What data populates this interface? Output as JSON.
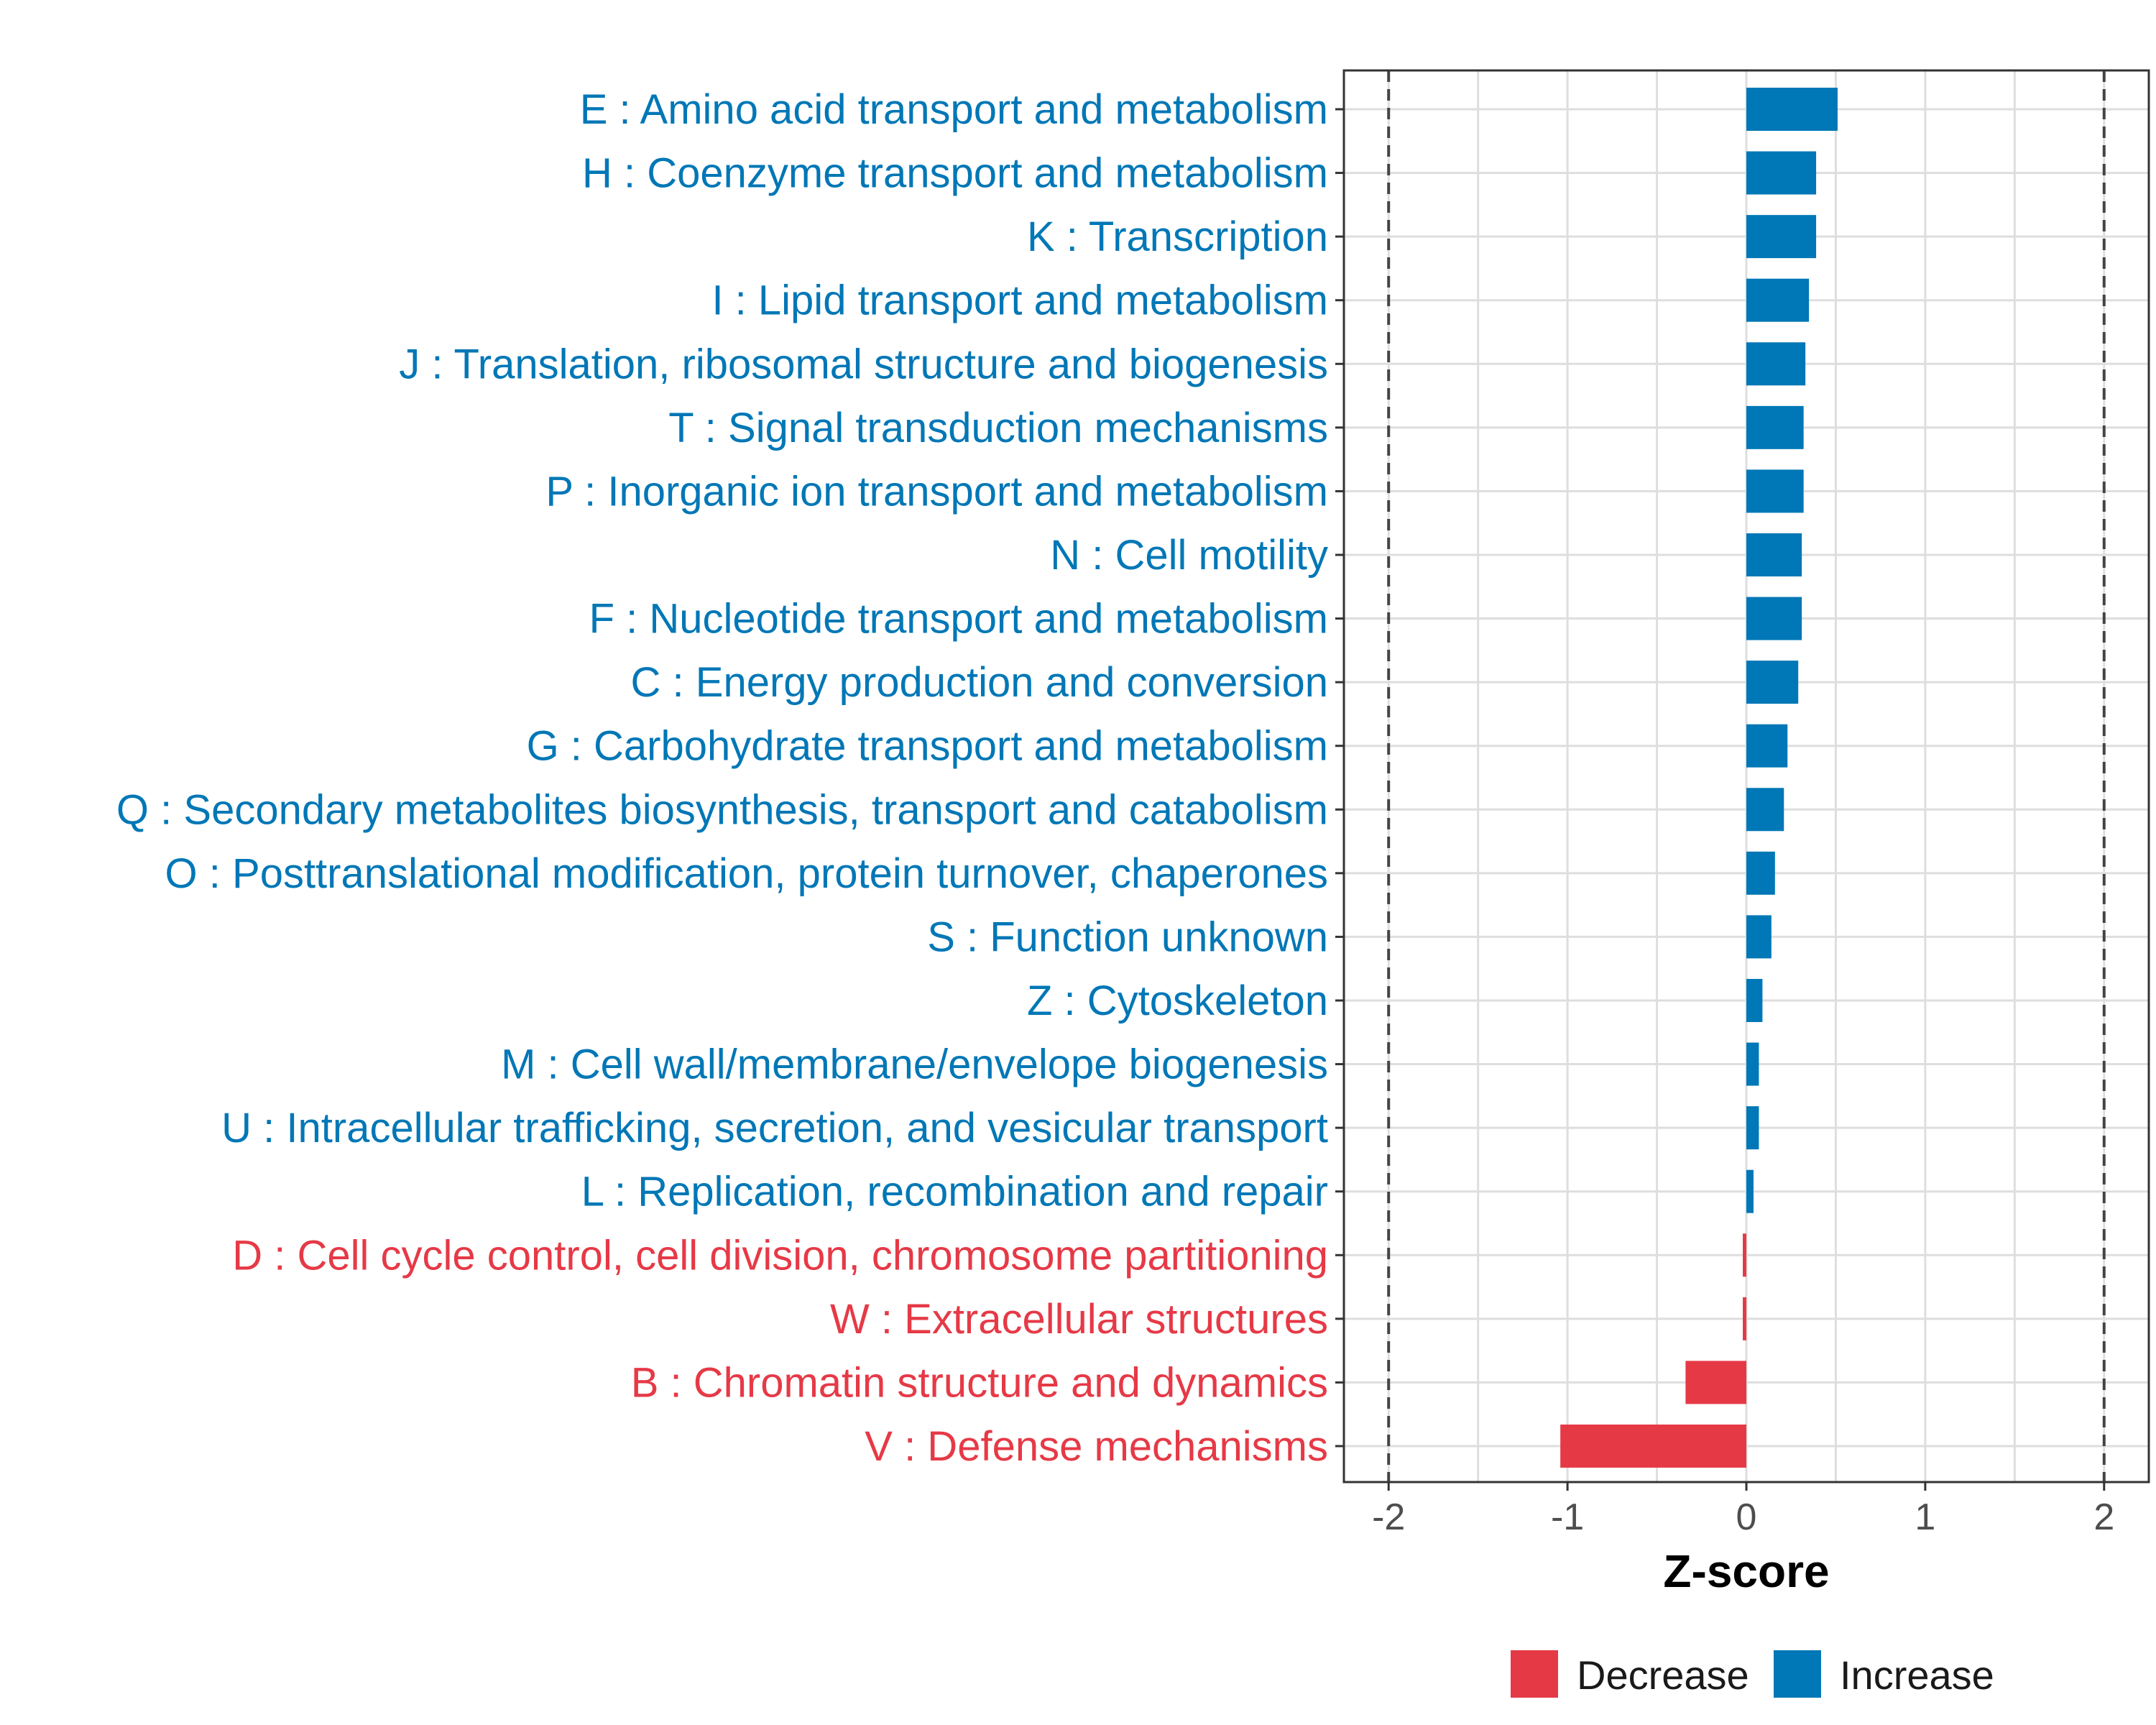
{
  "chart_data": {
    "type": "bar",
    "orientation": "horizontal",
    "title": "",
    "xlabel": "Z-score",
    "ylabel": "",
    "xlim": [
      -2.25,
      2.25
    ],
    "xticks": [
      -2,
      -1,
      0,
      1,
      2
    ],
    "xtick_labels": [
      "-2",
      "-1",
      "0",
      "1",
      "2"
    ],
    "reference_lines": [
      -2,
      2
    ],
    "grid": true,
    "colors": {
      "Decrease": "#e63946",
      "Increase": "#0077b6"
    },
    "legend": {
      "position": "bottom",
      "entries": [
        "Decrease",
        "Increase"
      ]
    },
    "categories": [
      "E : Amino acid transport and metabolism",
      "H : Coenzyme transport and metabolism",
      "K : Transcription",
      "I : Lipid transport and metabolism",
      "J : Translation, ribosomal structure and biogenesis",
      "T : Signal transduction mechanisms",
      "P : Inorganic ion transport and metabolism",
      "N : Cell motility",
      "F : Nucleotide transport and metabolism",
      "C : Energy production and conversion",
      "G : Carbohydrate transport and metabolism",
      "Q : Secondary metabolites biosynthesis, transport and catabolism",
      "O : Posttranslational modification, protein turnover, chaperones",
      "S : Function unknown",
      "Z : Cytoskeleton",
      "M : Cell wall/membrane/envelope biogenesis",
      "U : Intracellular trafficking, secretion, and vesicular transport",
      "L : Replication, recombination and repair",
      "D : Cell cycle control, cell division, chromosome partitioning",
      "W : Extracellular structures",
      "B : Chromatin structure and dynamics",
      "V : Defense mechanisms"
    ],
    "values": [
      0.51,
      0.39,
      0.39,
      0.35,
      0.33,
      0.32,
      0.32,
      0.31,
      0.31,
      0.29,
      0.23,
      0.21,
      0.16,
      0.14,
      0.09,
      0.07,
      0.07,
      0.04,
      -0.02,
      -0.02,
      -0.34,
      -1.04
    ],
    "groups": [
      "Increase",
      "Increase",
      "Increase",
      "Increase",
      "Increase",
      "Increase",
      "Increase",
      "Increase",
      "Increase",
      "Increase",
      "Increase",
      "Increase",
      "Increase",
      "Increase",
      "Increase",
      "Increase",
      "Increase",
      "Increase",
      "Decrease",
      "Decrease",
      "Decrease",
      "Decrease"
    ]
  }
}
